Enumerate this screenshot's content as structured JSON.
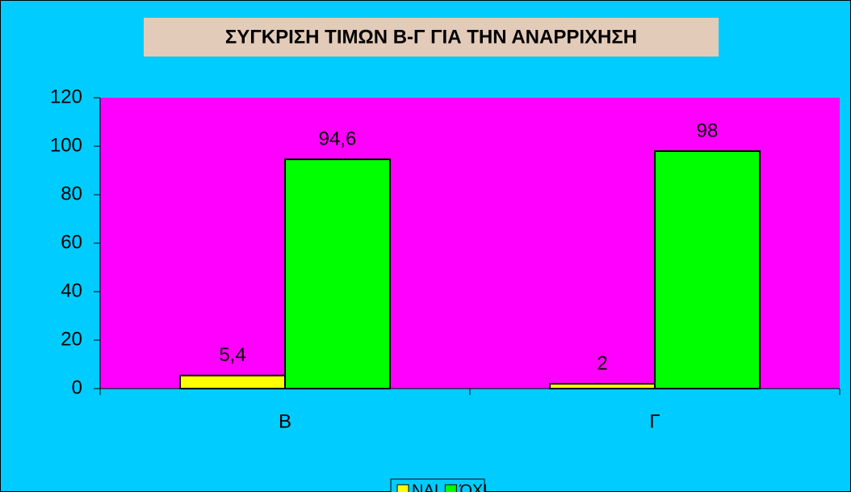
{
  "chart_data": {
    "type": "bar",
    "title": "ΣΥΓΚΡΙΣΗ ΤΙΜΩΝ Β-Γ ΓΙΑ ΤΗΝ ΑΝΑΡΡΙΧΗΣΗ",
    "categories": [
      "B",
      "Γ"
    ],
    "series": [
      {
        "name": "ΝΑΙ",
        "color": "#ffff00",
        "values": [
          5.4,
          2
        ],
        "value_labels": [
          "5,4",
          "2"
        ]
      },
      {
        "name": "ΌΧΙ",
        "color": "#00ff00",
        "values": [
          94.6,
          98
        ],
        "value_labels": [
          "94,6",
          "98"
        ]
      }
    ],
    "ylim": [
      0,
      120
    ],
    "yticks": [
      0,
      20,
      40,
      60,
      80,
      100,
      120
    ],
    "grid": false,
    "legend": "bottom"
  }
}
